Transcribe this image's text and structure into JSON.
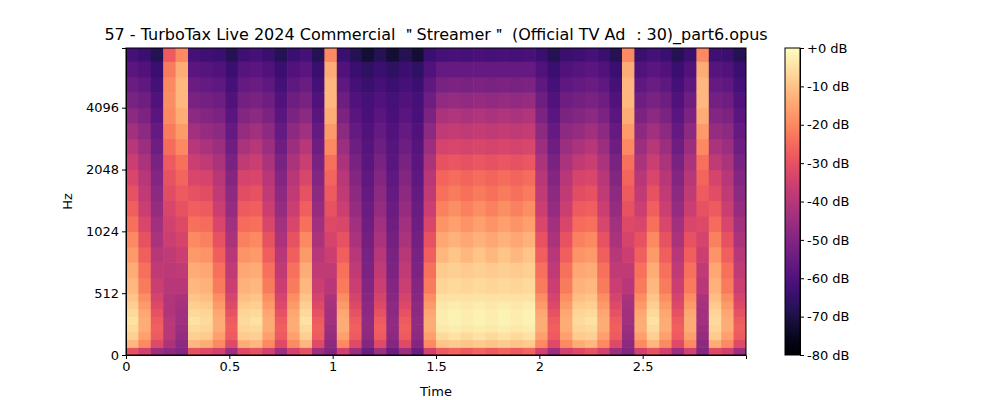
{
  "chart_data": {
    "type": "heatmap",
    "title": "57 - TurboTax Live 2024 Commercial ＂Streamer＂ (Official TV Ad ：30)_part6.opus",
    "x_label": "Time",
    "y_label": "Hz",
    "log": "y",
    "xlim": [
      0,
      3
    ],
    "xticks": [
      0,
      0.5,
      1,
      1.5,
      2,
      2.5
    ],
    "ylim": [
      0,
      8000
    ],
    "yticks": [
      0,
      512,
      1024,
      2048,
      4096
    ],
    "x_edges": [
      0,
      0.06,
      0.12,
      0.18,
      0.24,
      0.3,
      0.36,
      0.42,
      0.48,
      0.54,
      0.6,
      0.66,
      0.72,
      0.78,
      0.84,
      0.9,
      0.96,
      1.02,
      1.08,
      1.14,
      1.2,
      1.26,
      1.32,
      1.38,
      1.44,
      1.5,
      1.56,
      1.62,
      1.68,
      1.74,
      1.8,
      1.86,
      1.92,
      1.98,
      2.04,
      2.1,
      2.16,
      2.22,
      2.28,
      2.34,
      2.4,
      2.46,
      2.52,
      2.58,
      2.64,
      2.7,
      2.76,
      2.82,
      2.88,
      2.94,
      3
    ],
    "y_edges": [
      0,
      64,
      128,
      192,
      256,
      320,
      384,
      448,
      512,
      609,
      724,
      861,
      1024,
      1218,
      1448,
      1722,
      2048,
      2435,
      2896,
      3444,
      4096,
      4871,
      5793,
      6889,
      8000
    ],
    "z": [
      [
        -30,
        -12,
        -8,
        -6,
        -5,
        -6,
        -8,
        -10,
        -12,
        -14,
        -17,
        -20,
        -24,
        -27,
        -30,
        -33,
        -36,
        -40,
        -44,
        -48,
        -52,
        -55,
        -58,
        -62
      ],
      [
        -35,
        -20,
        -16,
        -14,
        -14,
        -15,
        -17,
        -19,
        -22,
        -24,
        -27,
        -30,
        -33,
        -36,
        -38,
        -40,
        -42,
        -45,
        -48,
        -51,
        -54,
        -57,
        -60,
        -64
      ],
      [
        -45,
        -32,
        -28,
        -27,
        -28,
        -30,
        -32,
        -34,
        -36,
        -38,
        -40,
        -42,
        -44,
        -46,
        -48,
        -50,
        -52,
        -54,
        -56,
        -58,
        -60,
        -62,
        -64,
        -68
      ],
      [
        -48,
        -42,
        -40,
        -40,
        -40,
        -41,
        -41,
        -41,
        -40,
        -39,
        -38,
        -36,
        -35,
        -33,
        -31,
        -30,
        -28,
        -25,
        -22,
        -20,
        -19,
        -20,
        -22,
        -28
      ],
      [
        -50,
        -48,
        -46,
        -45,
        -44,
        -44,
        -43,
        -42,
        -40,
        -38,
        -36,
        -34,
        -32,
        -30,
        -28,
        -26,
        -24,
        -20,
        -17,
        -14,
        -12,
        -12,
        -14,
        -20
      ],
      [
        -30,
        -12,
        -8,
        -6,
        -5,
        -6,
        -8,
        -10,
        -12,
        -14,
        -17,
        -20,
        -24,
        -27,
        -30,
        -33,
        -36,
        -40,
        -44,
        -48,
        -52,
        -55,
        -58,
        -62
      ],
      [
        -32,
        -14,
        -9,
        -7,
        -6,
        -7,
        -9,
        -11,
        -13,
        -15,
        -18,
        -21,
        -25,
        -28,
        -31,
        -34,
        -38,
        -42,
        -46,
        -50,
        -53,
        -56,
        -59,
        -63
      ],
      [
        -35,
        -20,
        -16,
        -14,
        -14,
        -15,
        -17,
        -19,
        -22,
        -24,
        -27,
        -30,
        -33,
        -36,
        -38,
        -40,
        -42,
        -45,
        -48,
        -51,
        -54,
        -57,
        -60,
        -64
      ],
      [
        -45,
        -32,
        -28,
        -27,
        -28,
        -30,
        -32,
        -34,
        -36,
        -38,
        -40,
        -42,
        -44,
        -46,
        -48,
        -50,
        -52,
        -54,
        -56,
        -58,
        -60,
        -62,
        -64,
        -68
      ],
      [
        -32,
        -14,
        -9,
        -7,
        -6,
        -7,
        -9,
        -11,
        -13,
        -15,
        -18,
        -21,
        -25,
        -28,
        -31,
        -34,
        -38,
        -42,
        -46,
        -50,
        -53,
        -56,
        -59,
        -63
      ],
      [
        -30,
        -12,
        -8,
        -6,
        -5,
        -6,
        -8,
        -10,
        -12,
        -14,
        -17,
        -20,
        -24,
        -27,
        -30,
        -33,
        -36,
        -40,
        -44,
        -48,
        -52,
        -55,
        -58,
        -62
      ],
      [
        -35,
        -20,
        -16,
        -14,
        -14,
        -15,
        -17,
        -19,
        -22,
        -24,
        -27,
        -30,
        -33,
        -36,
        -38,
        -40,
        -42,
        -45,
        -48,
        -51,
        -54,
        -57,
        -60,
        -64
      ],
      [
        -45,
        -32,
        -28,
        -27,
        -28,
        -30,
        -32,
        -34,
        -36,
        -38,
        -40,
        -42,
        -44,
        -46,
        -48,
        -50,
        -52,
        -54,
        -56,
        -58,
        -60,
        -62,
        -64,
        -68
      ],
      [
        -35,
        -20,
        -16,
        -14,
        -14,
        -15,
        -17,
        -19,
        -22,
        -24,
        -27,
        -30,
        -33,
        -36,
        -38,
        -40,
        -42,
        -45,
        -48,
        -51,
        -54,
        -57,
        -60,
        -64
      ],
      [
        -30,
        -12,
        -8,
        -6,
        -5,
        -6,
        -8,
        -10,
        -12,
        -14,
        -17,
        -20,
        -24,
        -27,
        -30,
        -33,
        -36,
        -40,
        -44,
        -48,
        -52,
        -55,
        -58,
        -62
      ],
      [
        -45,
        -32,
        -28,
        -27,
        -28,
        -30,
        -32,
        -34,
        -36,
        -38,
        -40,
        -42,
        -44,
        -46,
        -48,
        -50,
        -52,
        -54,
        -56,
        -58,
        -60,
        -62,
        -64,
        -68
      ],
      [
        -50,
        -48,
        -46,
        -45,
        -44,
        -44,
        -43,
        -42,
        -40,
        -38,
        -36,
        -34,
        -32,
        -30,
        -28,
        -26,
        -24,
        -20,
        -17,
        -14,
        -12,
        -12,
        -14,
        -20
      ],
      [
        -35,
        -20,
        -16,
        -14,
        -14,
        -15,
        -17,
        -19,
        -22,
        -24,
        -27,
        -30,
        -33,
        -36,
        -38,
        -40,
        -42,
        -45,
        -48,
        -51,
        -54,
        -57,
        -60,
        -64
      ],
      [
        -45,
        -32,
        -28,
        -27,
        -28,
        -30,
        -32,
        -34,
        -36,
        -38,
        -40,
        -42,
        -44,
        -46,
        -48,
        -50,
        -52,
        -54,
        -56,
        -58,
        -60,
        -62,
        -64,
        -68
      ],
      [
        -55,
        -50,
        -48,
        -47,
        -47,
        -48,
        -48,
        -49,
        -50,
        -51,
        -52,
        -53,
        -54,
        -55,
        -56,
        -57,
        -58,
        -59,
        -60,
        -61,
        -62,
        -64,
        -66,
        -72
      ],
      [
        -45,
        -32,
        -28,
        -27,
        -28,
        -30,
        -32,
        -34,
        -36,
        -38,
        -40,
        -42,
        -44,
        -46,
        -48,
        -50,
        -52,
        -54,
        -56,
        -58,
        -60,
        -62,
        -64,
        -68
      ],
      [
        -55,
        -50,
        -48,
        -47,
        -47,
        -48,
        -48,
        -49,
        -50,
        -51,
        -52,
        -53,
        -54,
        -55,
        -56,
        -57,
        -58,
        -59,
        -60,
        -61,
        -62,
        -64,
        -66,
        -72
      ],
      [
        -45,
        -32,
        -28,
        -27,
        -28,
        -30,
        -32,
        -34,
        -36,
        -38,
        -40,
        -42,
        -44,
        -46,
        -48,
        -50,
        -52,
        -54,
        -56,
        -58,
        -60,
        -62,
        -64,
        -68
      ],
      [
        -55,
        -50,
        -48,
        -47,
        -47,
        -48,
        -48,
        -49,
        -50,
        -51,
        -52,
        -53,
        -54,
        -55,
        -56,
        -57,
        -58,
        -59,
        -60,
        -61,
        -62,
        -64,
        -66,
        -72
      ],
      [
        -35,
        -20,
        -16,
        -14,
        -14,
        -15,
        -17,
        -19,
        -22,
        -24,
        -27,
        -30,
        -33,
        -36,
        -38,
        -40,
        -42,
        -45,
        -48,
        -51,
        -54,
        -57,
        -60,
        -64
      ],
      [
        -28,
        -10,
        -6,
        -4,
        -3,
        -3,
        -4,
        -5,
        -7,
        -9,
        -12,
        -15,
        -18,
        -21,
        -24,
        -26,
        -30,
        -34,
        -38,
        -42,
        -47,
        -52,
        -56,
        -62
      ],
      [
        -26,
        -9,
        -5,
        -3,
        -2,
        -2,
        -3,
        -5,
        -6,
        -8,
        -10,
        -13,
        -16,
        -19,
        -22,
        -25,
        -29,
        -33,
        -37,
        -41,
        -46,
        -51,
        -56,
        -61
      ],
      [
        -28,
        -10,
        -6,
        -4,
        -3,
        -3,
        -4,
        -5,
        -7,
        -9,
        -12,
        -15,
        -18,
        -21,
        -24,
        -26,
        -30,
        -34,
        -38,
        -42,
        -47,
        -52,
        -56,
        -62
      ],
      [
        -26,
        -9,
        -5,
        -3,
        -2,
        -2,
        -3,
        -5,
        -6,
        -8,
        -10,
        -13,
        -16,
        -19,
        -22,
        -25,
        -29,
        -33,
        -37,
        -41,
        -46,
        -51,
        -56,
        -61
      ],
      [
        -28,
        -10,
        -6,
        -4,
        -3,
        -3,
        -4,
        -5,
        -7,
        -9,
        -12,
        -15,
        -18,
        -21,
        -24,
        -26,
        -30,
        -34,
        -38,
        -42,
        -47,
        -52,
        -56,
        -62
      ],
      [
        -26,
        -9,
        -5,
        -3,
        -2,
        -2,
        -3,
        -5,
        -6,
        -8,
        -10,
        -13,
        -16,
        -19,
        -22,
        -25,
        -29,
        -33,
        -37,
        -41,
        -46,
        -51,
        -56,
        -61
      ],
      [
        -28,
        -10,
        -6,
        -4,
        -3,
        -3,
        -4,
        -5,
        -7,
        -9,
        -12,
        -15,
        -18,
        -21,
        -24,
        -26,
        -30,
        -34,
        -38,
        -42,
        -47,
        -52,
        -56,
        -62
      ],
      [
        -26,
        -9,
        -5,
        -3,
        -2,
        -2,
        -3,
        -5,
        -6,
        -8,
        -10,
        -13,
        -16,
        -19,
        -22,
        -25,
        -29,
        -33,
        -37,
        -41,
        -46,
        -51,
        -56,
        -61
      ],
      [
        -35,
        -20,
        -16,
        -14,
        -14,
        -15,
        -17,
        -19,
        -22,
        -24,
        -27,
        -30,
        -33,
        -36,
        -38,
        -40,
        -42,
        -45,
        -48,
        -51,
        -54,
        -57,
        -60,
        -64
      ],
      [
        -45,
        -32,
        -28,
        -27,
        -28,
        -30,
        -32,
        -34,
        -36,
        -38,
        -40,
        -42,
        -44,
        -46,
        -48,
        -50,
        -52,
        -54,
        -56,
        -58,
        -60,
        -62,
        -64,
        -68
      ],
      [
        -35,
        -20,
        -16,
        -14,
        -14,
        -15,
        -17,
        -19,
        -22,
        -24,
        -27,
        -30,
        -33,
        -36,
        -38,
        -40,
        -42,
        -45,
        -48,
        -51,
        -54,
        -57,
        -60,
        -64
      ],
      [
        -32,
        -14,
        -9,
        -7,
        -6,
        -7,
        -9,
        -11,
        -13,
        -15,
        -18,
        -21,
        -25,
        -28,
        -31,
        -34,
        -38,
        -42,
        -46,
        -50,
        -53,
        -56,
        -59,
        -63
      ],
      [
        -30,
        -12,
        -8,
        -6,
        -5,
        -6,
        -8,
        -10,
        -12,
        -14,
        -17,
        -20,
        -24,
        -27,
        -30,
        -33,
        -36,
        -40,
        -44,
        -48,
        -52,
        -55,
        -58,
        -62
      ],
      [
        -35,
        -20,
        -16,
        -14,
        -14,
        -15,
        -17,
        -19,
        -22,
        -24,
        -27,
        -30,
        -33,
        -36,
        -38,
        -40,
        -42,
        -45,
        -48,
        -51,
        -54,
        -57,
        -60,
        -64
      ],
      [
        -45,
        -32,
        -28,
        -27,
        -28,
        -30,
        -32,
        -34,
        -36,
        -38,
        -40,
        -42,
        -44,
        -46,
        -48,
        -50,
        -52,
        -54,
        -56,
        -58,
        -60,
        -62,
        -64,
        -68
      ],
      [
        -50,
        -48,
        -46,
        -45,
        -44,
        -44,
        -43,
        -42,
        -40,
        -38,
        -36,
        -34,
        -32,
        -30,
        -28,
        -26,
        -24,
        -20,
        -17,
        -14,
        -12,
        -12,
        -14,
        -20
      ],
      [
        -35,
        -20,
        -16,
        -14,
        -14,
        -15,
        -17,
        -19,
        -22,
        -24,
        -27,
        -30,
        -33,
        -36,
        -38,
        -40,
        -42,
        -45,
        -48,
        -51,
        -54,
        -57,
        -60,
        -64
      ],
      [
        -30,
        -12,
        -8,
        -6,
        -5,
        -6,
        -8,
        -10,
        -12,
        -14,
        -17,
        -20,
        -24,
        -27,
        -30,
        -33,
        -36,
        -40,
        -44,
        -48,
        -52,
        -55,
        -58,
        -62
      ],
      [
        -35,
        -20,
        -16,
        -14,
        -14,
        -15,
        -17,
        -19,
        -22,
        -24,
        -27,
        -30,
        -33,
        -36,
        -38,
        -40,
        -42,
        -45,
        -48,
        -51,
        -54,
        -57,
        -60,
        -64
      ],
      [
        -45,
        -32,
        -28,
        -27,
        -28,
        -30,
        -32,
        -34,
        -36,
        -38,
        -40,
        -42,
        -44,
        -46,
        -48,
        -50,
        -52,
        -54,
        -56,
        -58,
        -60,
        -62,
        -64,
        -68
      ],
      [
        -35,
        -20,
        -16,
        -14,
        -14,
        -15,
        -17,
        -19,
        -22,
        -24,
        -27,
        -30,
        -33,
        -36,
        -38,
        -40,
        -42,
        -45,
        -48,
        -51,
        -54,
        -57,
        -60,
        -64
      ],
      [
        -50,
        -48,
        -46,
        -45,
        -44,
        -44,
        -43,
        -42,
        -40,
        -38,
        -36,
        -34,
        -32,
        -30,
        -28,
        -26,
        -24,
        -20,
        -17,
        -14,
        -12,
        -12,
        -14,
        -20
      ],
      [
        -32,
        -14,
        -9,
        -7,
        -6,
        -7,
        -9,
        -11,
        -13,
        -15,
        -18,
        -21,
        -25,
        -28,
        -31,
        -34,
        -38,
        -42,
        -46,
        -50,
        -53,
        -56,
        -59,
        -63
      ],
      [
        -35,
        -20,
        -16,
        -14,
        -14,
        -15,
        -17,
        -19,
        -22,
        -24,
        -27,
        -30,
        -33,
        -36,
        -38,
        -40,
        -42,
        -45,
        -48,
        -51,
        -54,
        -57,
        -60,
        -64
      ],
      [
        -45,
        -32,
        -28,
        -27,
        -28,
        -30,
        -32,
        -34,
        -36,
        -38,
        -40,
        -42,
        -44,
        -46,
        -48,
        -50,
        -52,
        -54,
        -56,
        -58,
        -60,
        -62,
        -64,
        -68
      ]
    ],
    "colorbar": {
      "range": [
        -80,
        0
      ],
      "ticks": [
        {
          "value": 0,
          "label": "+0 dB"
        },
        {
          "value": -10,
          "label": "-10 dB"
        },
        {
          "value": -20,
          "label": "-20 dB"
        },
        {
          "value": -30,
          "label": "-30 dB"
        },
        {
          "value": -40,
          "label": "-40 dB"
        },
        {
          "value": -50,
          "label": "-50 dB"
        },
        {
          "value": -60,
          "label": "-60 dB"
        },
        {
          "value": -70,
          "label": "-70 dB"
        },
        {
          "value": -80,
          "label": "-80 dB"
        }
      ]
    }
  }
}
